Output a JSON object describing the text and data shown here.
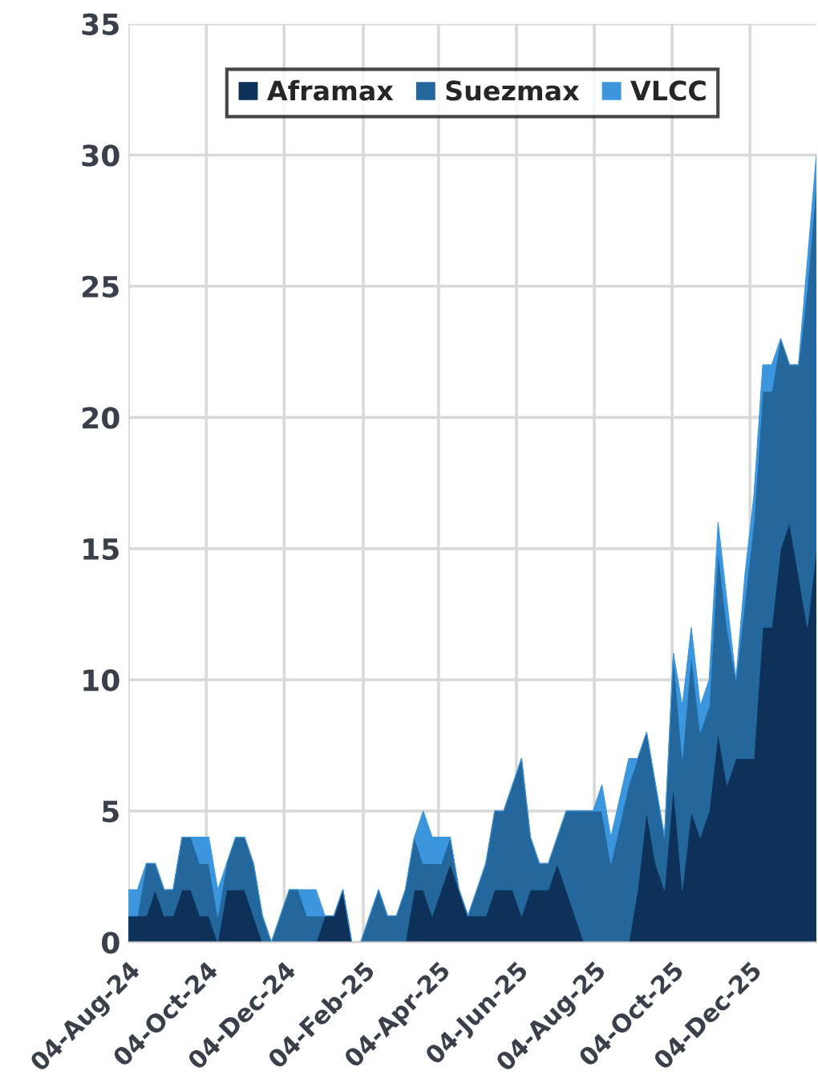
{
  "chart_data": {
    "type": "area",
    "stacked": true,
    "x": [
      "2024-08-04",
      "2024-08-11",
      "2024-08-18",
      "2024-08-25",
      "2024-09-01",
      "2024-09-08",
      "2024-09-15",
      "2024-09-22",
      "2024-09-29",
      "2024-10-06",
      "2024-10-13",
      "2024-10-20",
      "2024-10-27",
      "2024-11-03",
      "2024-11-10",
      "2024-11-17",
      "2024-11-24",
      "2024-12-01",
      "2024-12-08",
      "2024-12-15",
      "2024-12-22",
      "2024-12-29",
      "2025-01-05",
      "2025-01-12",
      "2025-01-19",
      "2025-01-26",
      "2025-02-02",
      "2025-02-09",
      "2025-02-16",
      "2025-02-23",
      "2025-03-02",
      "2025-03-09",
      "2025-03-16",
      "2025-03-23",
      "2025-03-30",
      "2025-04-06",
      "2025-04-13",
      "2025-04-20",
      "2025-04-27",
      "2025-05-04",
      "2025-05-11",
      "2025-05-18",
      "2025-05-25",
      "2025-06-01",
      "2025-06-08",
      "2025-06-15",
      "2025-06-22",
      "2025-06-29",
      "2025-07-06",
      "2025-07-13",
      "2025-07-20",
      "2025-07-27",
      "2025-08-03",
      "2025-08-10",
      "2025-08-17",
      "2025-08-31",
      "2025-09-07",
      "2025-09-14",
      "2025-09-21",
      "2025-09-28",
      "2025-10-05",
      "2025-10-12",
      "2025-10-19",
      "2025-10-26",
      "2025-11-02",
      "2025-11-09",
      "2025-11-16",
      "2025-11-23",
      "2025-11-30",
      "2025-12-07",
      "2025-12-14",
      "2025-12-21",
      "2025-12-28",
      "2026-01-04",
      "2026-01-11",
      "2026-01-18",
      "2026-01-25"
    ],
    "series": [
      {
        "name": "Aframax",
        "color": "#0d3158",
        "values": [
          1,
          1,
          1,
          2,
          1,
          1,
          2,
          2,
          1,
          1,
          0,
          2,
          2,
          2,
          1,
          0,
          0,
          0,
          0,
          0,
          0,
          0,
          1,
          1,
          2,
          0,
          0,
          0,
          0,
          0,
          0,
          0,
          2,
          2,
          1,
          2,
          3,
          2,
          1,
          1,
          1,
          2,
          2,
          2,
          1,
          2,
          2,
          2,
          3,
          2,
          1,
          0,
          0,
          0,
          0,
          0,
          2,
          5,
          3,
          2,
          6,
          2,
          5,
          4,
          5,
          8,
          6,
          7,
          7,
          7,
          12,
          12,
          15,
          16,
          14,
          12,
          15
        ]
      },
      {
        "name": "Suezmax",
        "color": "#23679c",
        "values": [
          0,
          0,
          2,
          1,
          1,
          1,
          2,
          2,
          2,
          2,
          1,
          1,
          2,
          2,
          2,
          1,
          0,
          1,
          2,
          2,
          1,
          1,
          0,
          0,
          0,
          0,
          0,
          1,
          2,
          1,
          1,
          2,
          2,
          1,
          2,
          1,
          1,
          0,
          0,
          1,
          2,
          3,
          3,
          4,
          6,
          2,
          1,
          1,
          1,
          3,
          4,
          5,
          5,
          5,
          3,
          6,
          5,
          3,
          3,
          2,
          5,
          5,
          6,
          4,
          4,
          7,
          6,
          3,
          6,
          9,
          9,
          9,
          8,
          6,
          8,
          13,
          14
        ]
      },
      {
        "name": "VLCC",
        "color": "#3b96de",
        "values": [
          1,
          1,
          0,
          0,
          0,
          0,
          0,
          0,
          1,
          1,
          1,
          0,
          0,
          0,
          0,
          0,
          0,
          0,
          0,
          0,
          1,
          1,
          0,
          0,
          0,
          0,
          0,
          0,
          0,
          0,
          0,
          0,
          0,
          2,
          1,
          1,
          0,
          0,
          0,
          0,
          0,
          0,
          0,
          0,
          0,
          0,
          0,
          0,
          0,
          0,
          0,
          0,
          0,
          1,
          1,
          1,
          0,
          0,
          0,
          0,
          0,
          2,
          1,
          1,
          1,
          1,
          1,
          0,
          1,
          1,
          1,
          1,
          0,
          0,
          0,
          1,
          1
        ]
      }
    ],
    "xlim": [
      "2024-08-04",
      "2026-01-25"
    ],
    "xticks": [
      {
        "value": "2024-08-04",
        "label": "04-Aug-24"
      },
      {
        "value": "2024-10-04",
        "label": "04-Oct-24"
      },
      {
        "value": "2024-12-04",
        "label": "04-Dec-24"
      },
      {
        "value": "2025-02-04",
        "label": "04-Feb-25"
      },
      {
        "value": "2025-04-04",
        "label": "04-Apr-25"
      },
      {
        "value": "2025-06-04",
        "label": "04-Jun-25"
      },
      {
        "value": "2025-08-04",
        "label": "04-Aug-25"
      },
      {
        "value": "2025-10-04",
        "label": "04-Oct-25"
      },
      {
        "value": "2025-12-04",
        "label": "04-Dec-25"
      }
    ],
    "ylim": [
      0,
      35
    ],
    "yticks": [
      0,
      5,
      10,
      15,
      20,
      25,
      30,
      35
    ],
    "grid": true,
    "legend": "top"
  }
}
